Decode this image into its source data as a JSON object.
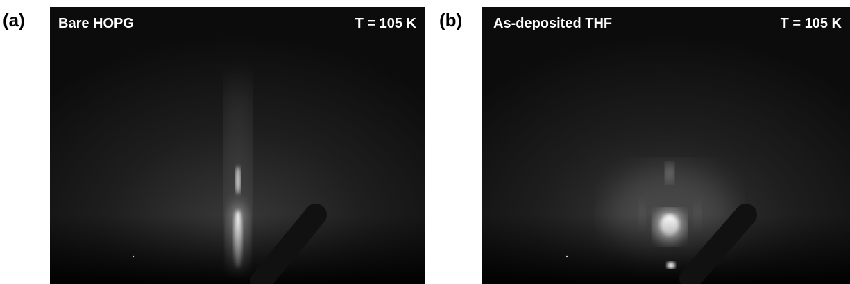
{
  "panels": [
    {
      "label": "(a)",
      "title": "Bare HOPG",
      "temperature": "T = 105 K"
    },
    {
      "label": "(b)",
      "title": "As-deposited THF",
      "temperature": "T = 105 K"
    }
  ]
}
